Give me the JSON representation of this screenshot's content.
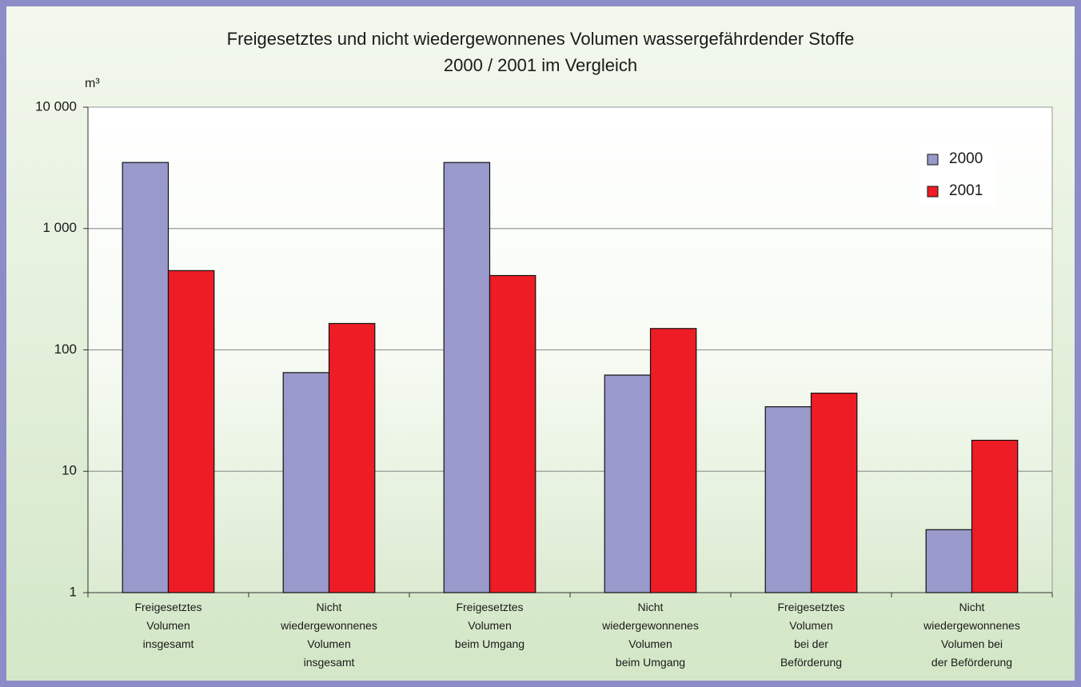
{
  "chart_data": {
    "type": "bar",
    "title": "Freigesetztes und nicht wiedergewonnenes Volumen wassergefährdender Stoffe\n2000 / 2001 im Vergleich",
    "y_label": "m³",
    "categories": [
      "Freigesetztes\nVolumen\ninsgesamt",
      "Nicht\nwiedergewonnenes\nVolumen\ninsgesamt",
      "Freigesetztes\nVolumen\nbeim Umgang",
      "Nicht\nwiedergewonnenes\nVolumen\nbeim Umgang",
      "Freigesetztes\nVolumen\nbei der\nBeförderung",
      "Nicht\nwiedergewonnenes\nVolumen bei\nder Beförderung"
    ],
    "series": [
      {
        "name": "2000",
        "color": "#9999cc",
        "values": [
          3500,
          65,
          3500,
          62,
          34,
          3.3
        ]
      },
      {
        "name": "2001",
        "color": "#ee1c25",
        "values": [
          450,
          165,
          410,
          150,
          44,
          18
        ]
      }
    ],
    "log_scale": true,
    "ylim": [
      1,
      10000
    ],
    "yticks": [
      1,
      10,
      100,
      {
        "value": 1000,
        "label": "1 000"
      },
      {
        "value": 10000,
        "label": "10 000"
      }
    ],
    "grid": true,
    "legend_position": "upper right"
  }
}
